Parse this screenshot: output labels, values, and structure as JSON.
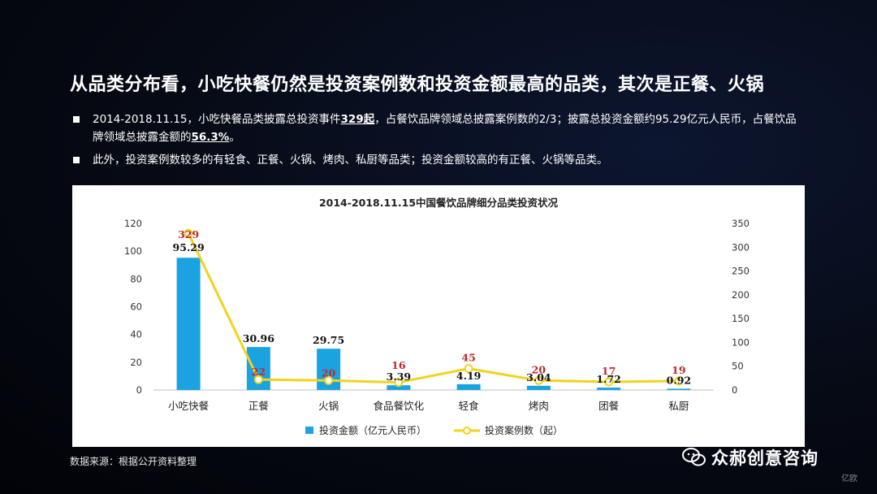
{
  "slide": {
    "title": "从品类分布看，小吃快餐仍然是投资案例数和投资金额最高的品类，其次是正餐、火锅",
    "bullets": [
      {
        "parts": [
          {
            "text": "2014-2018.11.15，小吃快餐品类披露总投资事件",
            "bold": false
          },
          {
            "text": "329起",
            "bold": true
          },
          {
            "text": "，占餐饮品牌领域总披露案例数的2/3；披露总投资金额约95.29亿元人民币，占餐饮品牌领域总披露金额的",
            "bold": false
          },
          {
            "text": "56.3%",
            "bold": true
          },
          {
            "text": "。",
            "bold": false
          }
        ]
      },
      {
        "parts": [
          {
            "text": "此外，投资案例数较多的有轻食、正餐、火锅、烤肉、私厨等品类；投资金额较高的有正餐、火锅等品类。",
            "bold": false
          }
        ]
      }
    ],
    "source": "数据来源：根据公开资料整理",
    "brand": "众郝创意咨询",
    "watermark": "亿欧"
  },
  "chart_data": {
    "type": "bar",
    "title": "2014-2018.11.15中国餐饮品牌细分品类投资状况",
    "categories": [
      "小吃快餐",
      "正餐",
      "火锅",
      "食品餐饮化",
      "轻食",
      "烤肉",
      "团餐",
      "私厨"
    ],
    "series": [
      {
        "name": "投资金额（亿元人民币）",
        "type": "bar",
        "axis": "left",
        "color": "#1aa3e0",
        "values": [
          95.29,
          30.96,
          29.75,
          3.39,
          4.19,
          3.04,
          1.72,
          0.92
        ]
      },
      {
        "name": "投资案例数（起）",
        "type": "line",
        "axis": "right",
        "color": "#f2d31c",
        "values": [
          329,
          22,
          20,
          16,
          45,
          20,
          17,
          19
        ]
      }
    ],
    "y_left": {
      "min": 0,
      "max": 120,
      "ticks": [
        "0",
        "20",
        "40",
        "60",
        "80",
        "100",
        "120"
      ]
    },
    "y_right": {
      "min": 0,
      "max": 350,
      "ticks": [
        "0",
        "50",
        "100",
        "150",
        "200",
        "250",
        "300",
        "350"
      ]
    },
    "bar_labels": [
      "95.29",
      "30.96",
      "29.75",
      "3.39",
      "4.19",
      "3.04",
      "1.72",
      "0.92"
    ],
    "line_labels": [
      "329",
      "22",
      "20",
      "16",
      "45",
      "20",
      "17",
      "19"
    ],
    "line_label_color": "#c0282d",
    "legend_position": "bottom",
    "grid": false
  }
}
